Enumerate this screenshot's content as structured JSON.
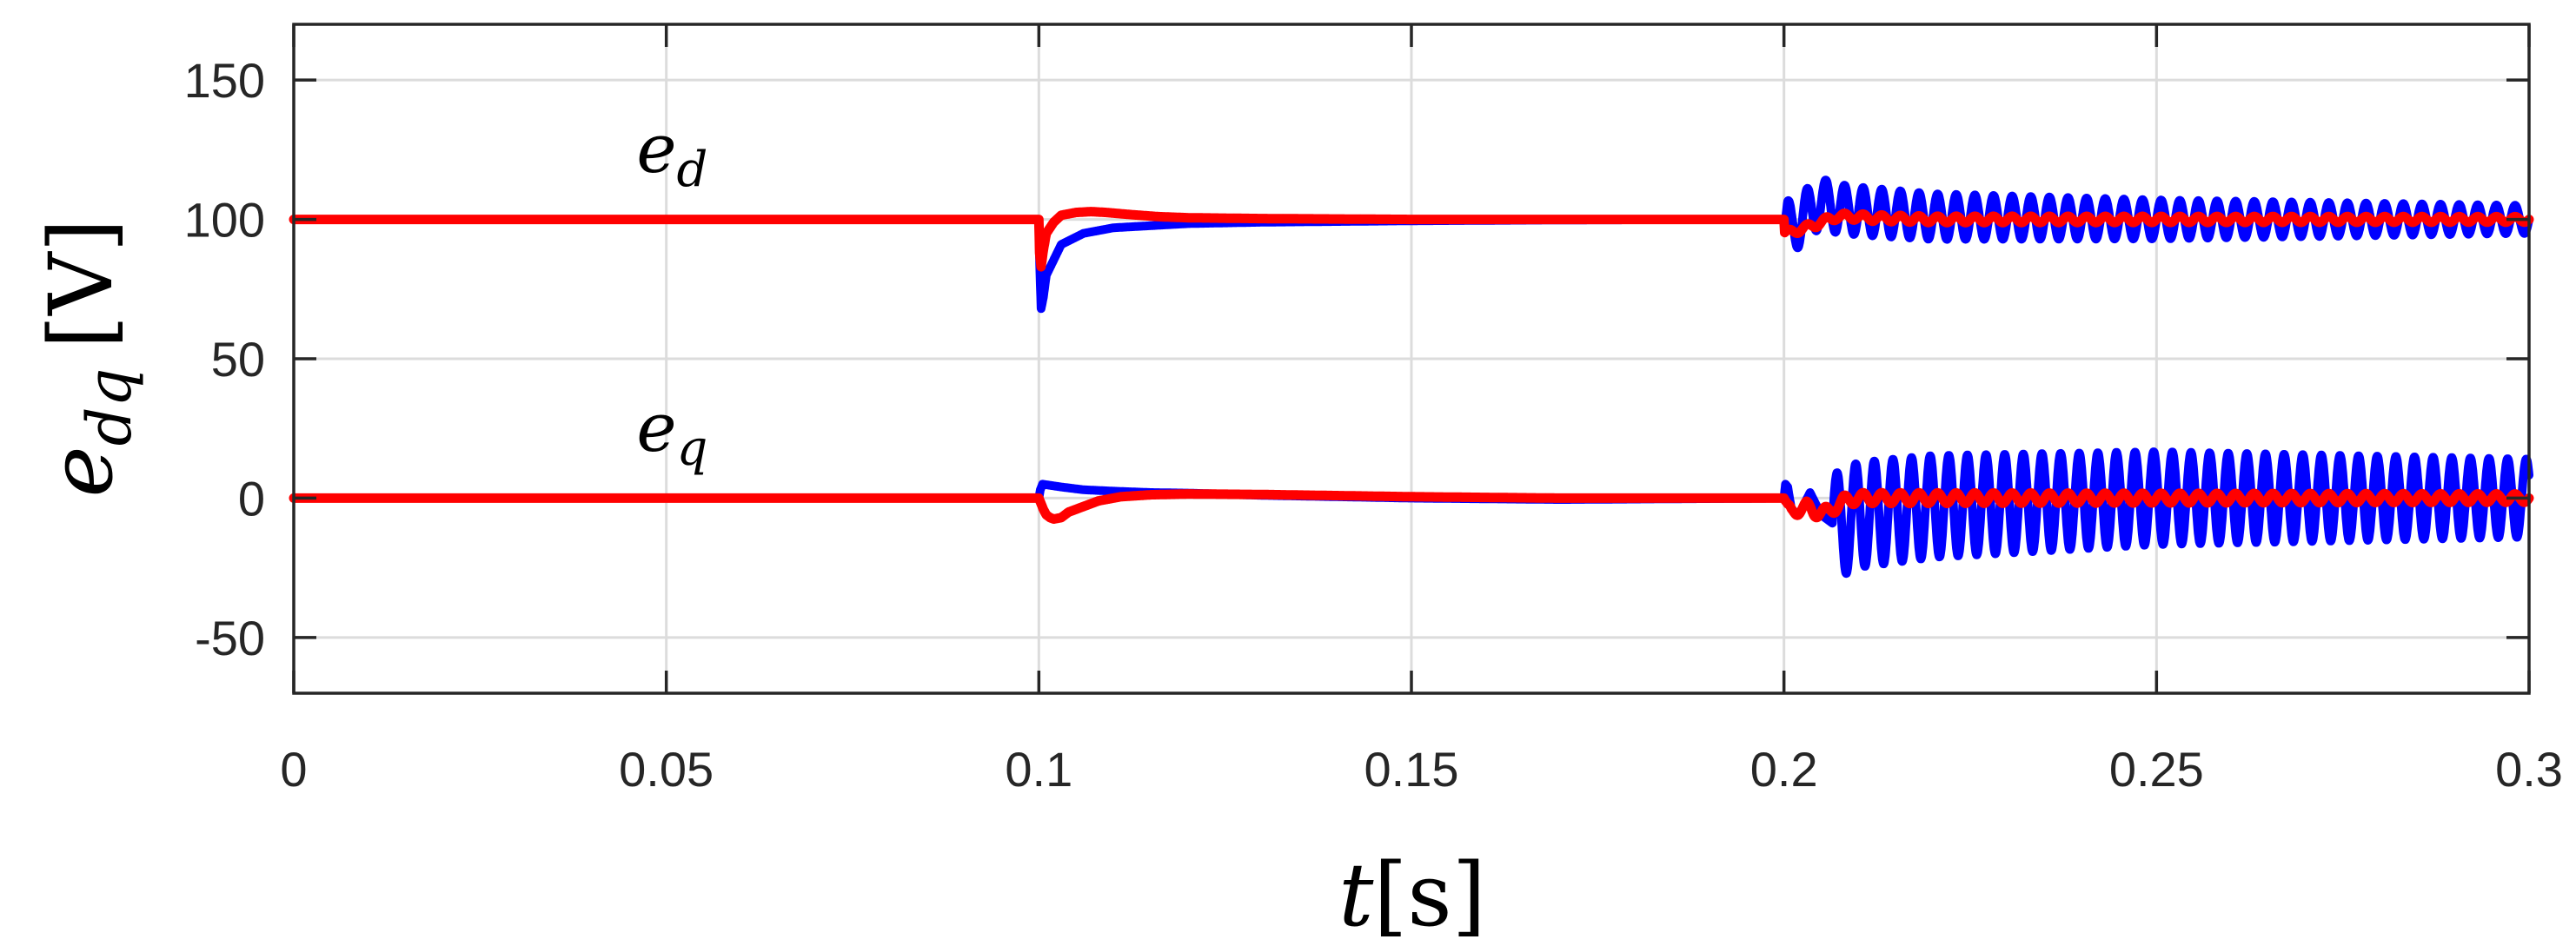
{
  "chart_data": {
    "type": "line",
    "title": "",
    "xlabel": {
      "var": "t",
      "unit": "[s]"
    },
    "ylabel": {
      "var": "e",
      "sub": "dq",
      "unit": "[V]"
    },
    "xlim": [
      0,
      0.3
    ],
    "ylim": [
      -70,
      170
    ],
    "xticks": [
      0,
      0.05,
      0.1,
      0.15,
      0.2,
      0.25,
      0.3
    ],
    "xtick_labels": [
      "0",
      "0.05",
      "0.1",
      "0.15",
      "0.2",
      "0.25",
      "0.3"
    ],
    "yticks": [
      -50,
      0,
      50,
      100,
      150
    ],
    "ytick_labels": [
      "-50",
      "0",
      "50",
      "100",
      "150"
    ],
    "grid": true,
    "annotations": [
      {
        "var": "e",
        "sub": "d",
        "x": 0.046,
        "y": 117
      },
      {
        "var": "e",
        "sub": "q",
        "x": 0.046,
        "y": 17
      }
    ],
    "series": [
      {
        "color": "#0000ff",
        "x": [
          0,
          0.1,
          0.1001,
          0.1003,
          0.1006,
          0.101,
          0.103,
          0.106,
          0.11,
          0.12,
          0.13,
          0.15,
          0.17,
          0.2,
          0.2001,
          0.2005,
          0.201,
          0.202,
          0.203,
          0.205,
          0.207,
          0.21,
          0.215,
          0.22,
          0.25,
          0.3
        ],
        "y": [
          100,
          100,
          85,
          68,
          72,
          80,
          91,
          95,
          97,
          98.5,
          99,
          99.5,
          99.8,
          100,
          94,
          98,
          97,
          99,
          102,
          106,
          104,
          103,
          102,
          101,
          100,
          100
        ],
        "osc": {
          "start": 0.2,
          "freq": 400,
          "amp_start": 9,
          "amp_end": 5
        }
      },
      {
        "color": "#0000ff",
        "x": [
          0,
          0.1,
          0.1002,
          0.1005,
          0.103,
          0.106,
          0.11,
          0.115,
          0.12,
          0.13,
          0.15,
          0.17,
          0.2,
          0.2002,
          0.2005,
          0.201,
          0.202,
          0.2035,
          0.205,
          0.207,
          0.21,
          0.22,
          0.25,
          0.3
        ],
        "y": [
          0,
          0,
          3,
          5,
          4,
          3,
          2.5,
          2,
          1.8,
          1,
          0,
          -0.5,
          0,
          5,
          4,
          -4,
          -6,
          2,
          -6,
          -10,
          -6,
          -3,
          0,
          0
        ],
        "osc": {
          "start": 0.2065,
          "freq": 400,
          "amp_start": 19,
          "amp_end": 14
        }
      },
      {
        "color": "#ff0000",
        "x": [
          0,
          0.1,
          0.1001,
          0.1003,
          0.1006,
          0.101,
          0.102,
          0.103,
          0.105,
          0.107,
          0.109,
          0.112,
          0.116,
          0.12,
          0.13,
          0.15,
          0.17,
          0.2,
          0.2001,
          0.2005,
          0.2015,
          0.203,
          0.205,
          0.207,
          0.209,
          0.212,
          0.22,
          0.25,
          0.3
        ],
        "y": [
          100,
          100,
          88,
          83,
          89,
          95,
          99,
          101.5,
          102.5,
          102.8,
          102.5,
          101.8,
          101,
          100.6,
          100.3,
          100,
          100,
          100,
          95,
          95,
          96,
          97,
          99,
          101,
          101,
          100.5,
          100,
          100,
          100
        ],
        "osc": {
          "start": 0.2,
          "freq": 400,
          "amp_start": 1.2,
          "amp_end": 1
        }
      },
      {
        "color": "#ff0000",
        "x": [
          0,
          0.1,
          0.1003,
          0.1006,
          0.101,
          0.1015,
          0.102,
          0.103,
          0.104,
          0.106,
          0.108,
          0.111,
          0.115,
          0.12,
          0.13,
          0.15,
          0.17,
          0.2,
          0.2002,
          0.2005,
          0.201,
          0.202,
          0.203,
          0.204,
          0.205,
          0.206,
          0.208,
          0.21,
          0.22,
          0.25,
          0.3
        ],
        "y": [
          0,
          0,
          -2,
          -4,
          -6,
          -7,
          -7.5,
          -7,
          -5,
          -3,
          -1,
          0.5,
          1.2,
          1.5,
          1.3,
          0.5,
          0,
          0,
          -2,
          -4,
          -5,
          -4,
          -3,
          -5,
          -5,
          -5,
          -1,
          0,
          0,
          0,
          0
        ],
        "osc": {
          "start": 0.2,
          "freq": 400,
          "amp_start": 2,
          "amp_end": 1.5
        }
      }
    ]
  }
}
